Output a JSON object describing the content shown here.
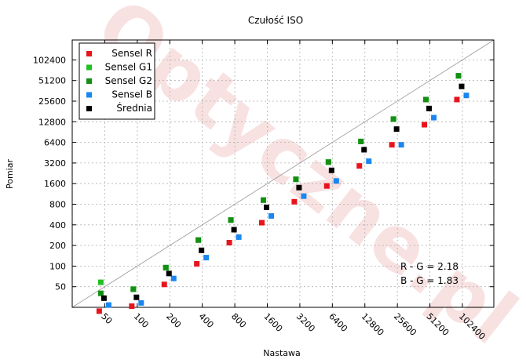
{
  "chart_data": {
    "type": "scatter",
    "title": "Czułość ISO",
    "xlabel": "Nastawa",
    "ylabel": "Pomiar",
    "x_scale": "log2",
    "y_scale": "log2",
    "xlim": [
      25,
      200000
    ],
    "ylim": [
      25,
      200000
    ],
    "x_ticks": [
      "50",
      "100",
      "200",
      "400",
      "800",
      "1600",
      "3200",
      "6400",
      "12800",
      "25600",
      "51200",
      "102400"
    ],
    "y_ticks": [
      "50",
      "100",
      "200",
      "400",
      "800",
      "1600",
      "3200",
      "6400",
      "12800",
      "25600",
      "51200",
      "102400"
    ],
    "grid": true,
    "legend": "top-left",
    "reference_line": "y = x",
    "watermark": "Optyczne.pl",
    "annotations": [
      "R - G = 2.18",
      "B - G = 1.83"
    ],
    "series": [
      {
        "name": "Sensel R",
        "color": "#e8141c",
        "x": [
          50,
          100,
          200,
          400,
          800,
          1600,
          3200,
          6400,
          12800,
          25600,
          51200,
          102400
        ],
        "y": [
          22,
          26,
          54,
          108,
          220,
          430,
          870,
          1480,
          2900,
          5900,
          11600,
          27000
        ]
      },
      {
        "name": "Sensel G1",
        "color": "#22c022",
        "x": [
          50,
          100,
          200,
          400,
          800,
          1600,
          3200,
          6400,
          12800,
          25600,
          51200,
          102400
        ],
        "y": [
          58,
          46,
          95,
          240,
          470,
          920,
          1850,
          3300,
          6600,
          14000,
          27000,
          60000
        ]
      },
      {
        "name": "Sensel G2",
        "color": "#139013",
        "x": [
          50,
          100,
          200,
          400,
          800,
          1600,
          3200,
          6400,
          12800,
          25600,
          51200,
          102400
        ],
        "y": [
          40,
          46,
          95,
          240,
          470,
          920,
          1850,
          3300,
          6600,
          14000,
          27000,
          60000
        ]
      },
      {
        "name": "Sensel B",
        "color": "#1a86f0",
        "x": [
          50,
          100,
          200,
          400,
          800,
          1600,
          3200,
          6400,
          12800,
          25600,
          51200,
          102400
        ],
        "y": [
          27,
          29,
          66,
          133,
          265,
          540,
          1050,
          1750,
          3400,
          5900,
          14700,
          31000
        ]
      },
      {
        "name": "Średnia",
        "color": "#000000",
        "x": [
          50,
          100,
          200,
          400,
          800,
          1600,
          3200,
          6400,
          12800,
          25600,
          51200,
          102400
        ],
        "y": [
          34,
          35,
          78,
          170,
          340,
          720,
          1400,
          2500,
          5000,
          10000,
          20000,
          42000
        ]
      }
    ]
  }
}
